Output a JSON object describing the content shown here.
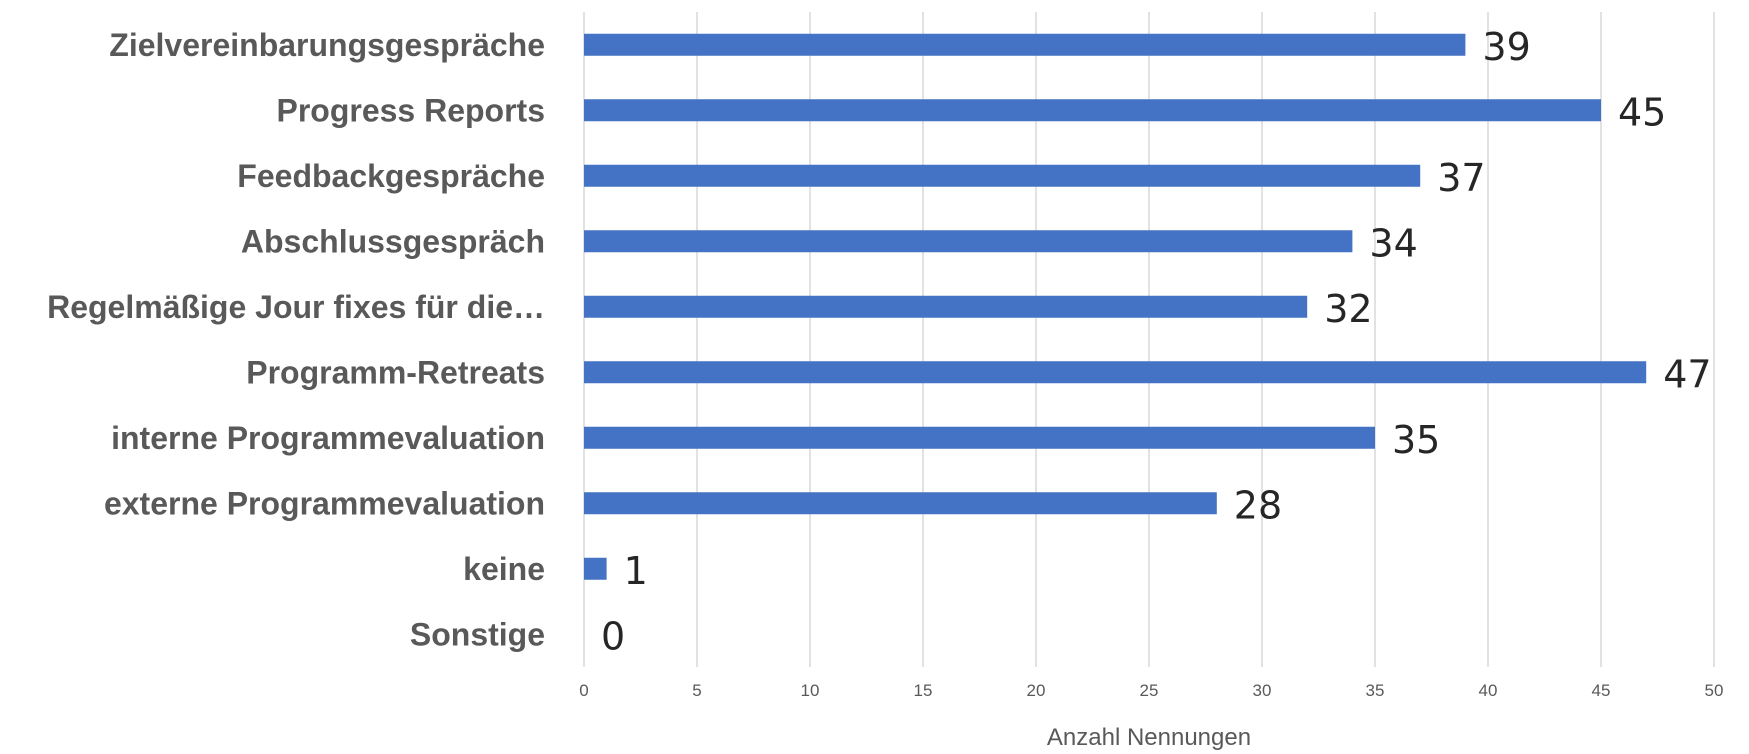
{
  "chart_data": {
    "type": "bar",
    "orientation": "horizontal",
    "categories": [
      "Zielvereinbarungsgespräche",
      "Progress Reports",
      "Feedbackgespräche",
      "Abschlussgespräch",
      "Regelmäßige Jour fixes für die…",
      "Programm-Retreats",
      "interne Programmevaluation",
      "externe Programmevaluation",
      "keine",
      "Sonstige"
    ],
    "values": [
      39,
      45,
      37,
      34,
      32,
      47,
      35,
      28,
      1,
      0
    ],
    "xlabel": "Anzahl Nennungen",
    "ylabel": "",
    "xlim": [
      0,
      50
    ],
    "xticks": [
      0,
      5,
      10,
      15,
      20,
      25,
      30,
      35,
      40,
      45,
      50
    ],
    "grid": "vertical",
    "legend": "none",
    "bar_color": "#4472c4"
  }
}
